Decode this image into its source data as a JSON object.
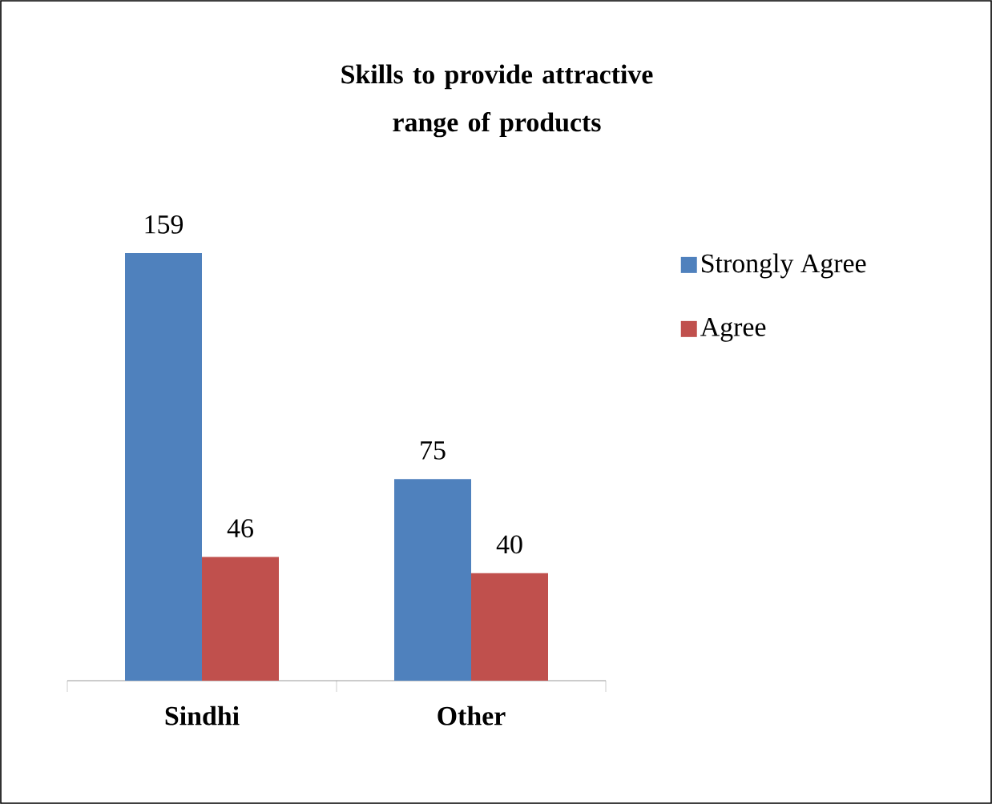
{
  "chart_data": {
    "type": "bar",
    "title": "Skills to provide attractive range of products",
    "categories": [
      "Sindhi",
      "Other"
    ],
    "series": [
      {
        "name": "Strongly Agree",
        "color": "#4f81bd",
        "values": [
          159,
          75
        ]
      },
      {
        "name": "Agree",
        "color": "#c0504d",
        "values": [
          46,
          40
        ]
      }
    ],
    "data_labels": true,
    "legend": "right"
  }
}
